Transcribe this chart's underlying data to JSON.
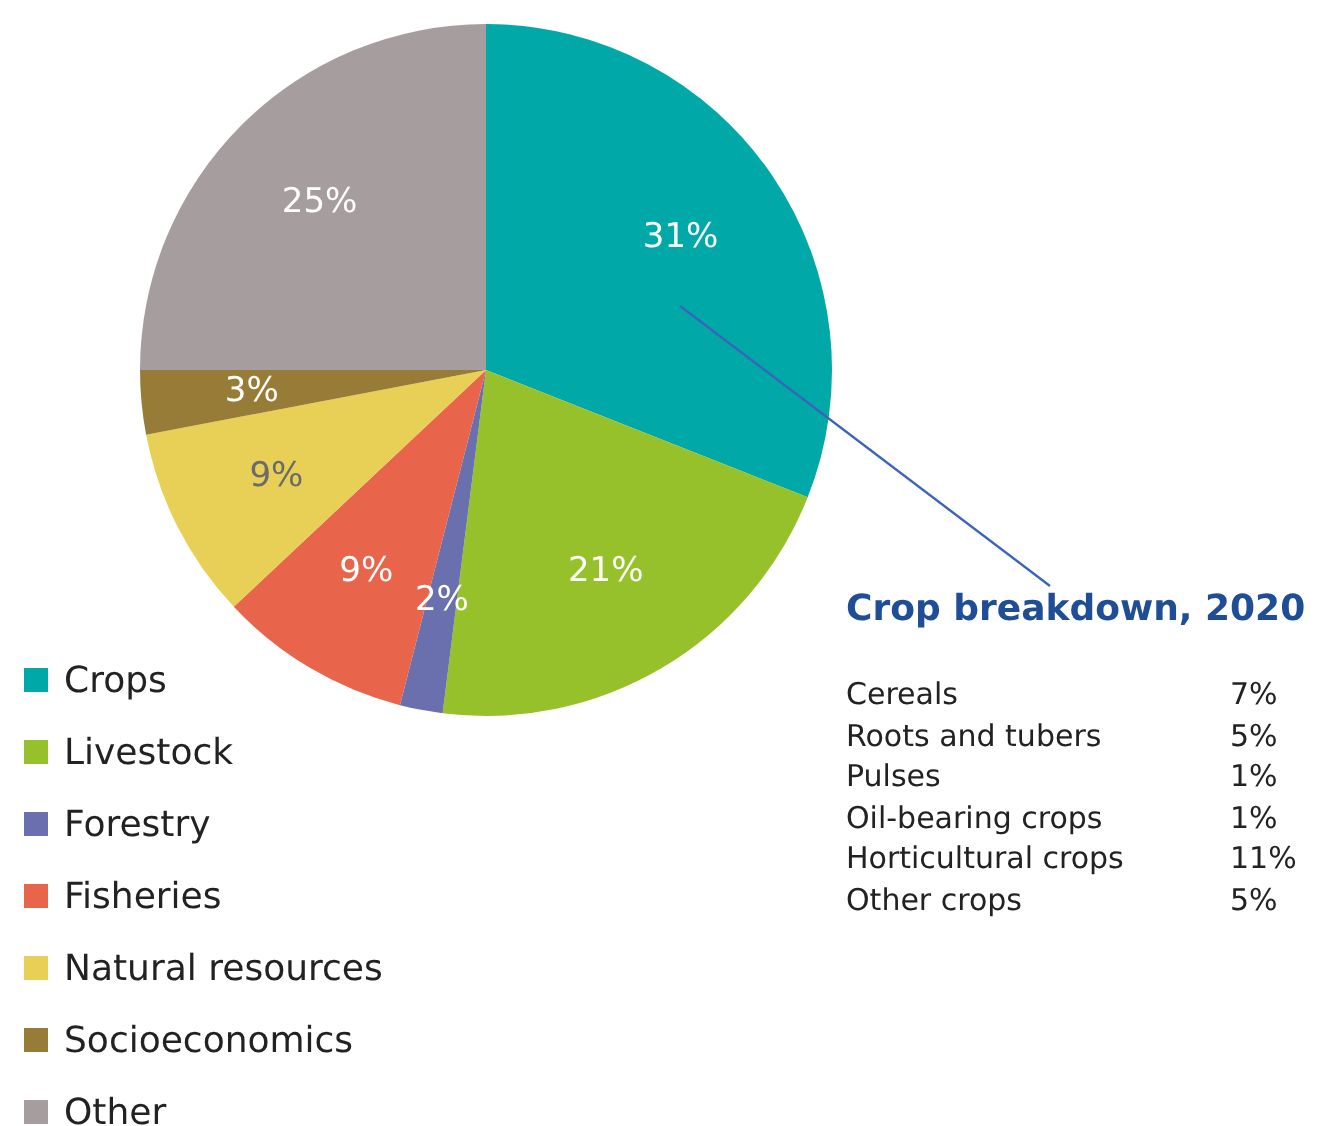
{
  "chart_data": {
    "type": "pie",
    "categories": [
      "Crops",
      "Livestock",
      "Forestry",
      "Fisheries",
      "Natural resources",
      "Socioeconomics",
      "Other"
    ],
    "values": [
      31,
      21,
      2,
      9,
      9,
      3,
      25
    ],
    "value_labels": [
      "31%",
      "21%",
      "2%",
      "9%",
      "9%",
      "3%",
      "25%"
    ],
    "colors": [
      "#00a9a8",
      "#97c12a",
      "#6a6fae",
      "#e8644a",
      "#e8cf55",
      "#967c37",
      "#a69e9e"
    ],
    "legend": "bottom left",
    "annotations": [
      "Crop breakdown, 2020",
      "Cereals",
      "7%",
      "Roots and tubers",
      "5%",
      "Pulses",
      "1%",
      "Oil-bearing crops",
      "1%",
      "Horticultural crops",
      "11%",
      "Other crops",
      "5%"
    ]
  }
}
